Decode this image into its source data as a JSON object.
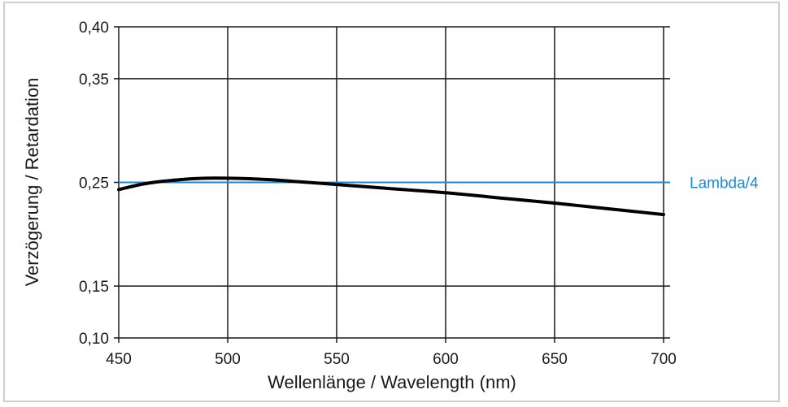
{
  "chart_data": {
    "type": "line",
    "title": "",
    "xlabel": "Wellenlänge / Wavelength (nm)",
    "ylabel": "Verzögerung / Retardation",
    "xlim": [
      450,
      700
    ],
    "ylim": [
      0.1,
      0.4
    ],
    "x_ticks": [
      450,
      500,
      550,
      600,
      650,
      700
    ],
    "x_tick_labels": [
      "450",
      "500",
      "550",
      "600",
      "650",
      "700"
    ],
    "y_ticks": [
      0.1,
      0.15,
      0.25,
      0.35,
      0.4
    ],
    "y_tick_labels": [
      "0,10",
      "0,15",
      "0,25",
      "0,35",
      "0,40"
    ],
    "grid": true,
    "series": [
      {
        "color": "#000000",
        "x": [
          450,
          460,
          470,
          480,
          490,
          500,
          510,
          520,
          530,
          540,
          550,
          575,
          600,
          625,
          650,
          675,
          700
        ],
        "y": [
          0.243,
          0.248,
          0.251,
          0.253,
          0.254,
          0.254,
          0.2535,
          0.2525,
          0.251,
          0.2495,
          0.248,
          0.244,
          0.24,
          0.235,
          0.23,
          0.2245,
          0.219
        ]
      }
    ],
    "reference_lines": [
      {
        "label": "Lambda/4",
        "y": 0.25,
        "color": "#1b8ad6"
      }
    ]
  }
}
